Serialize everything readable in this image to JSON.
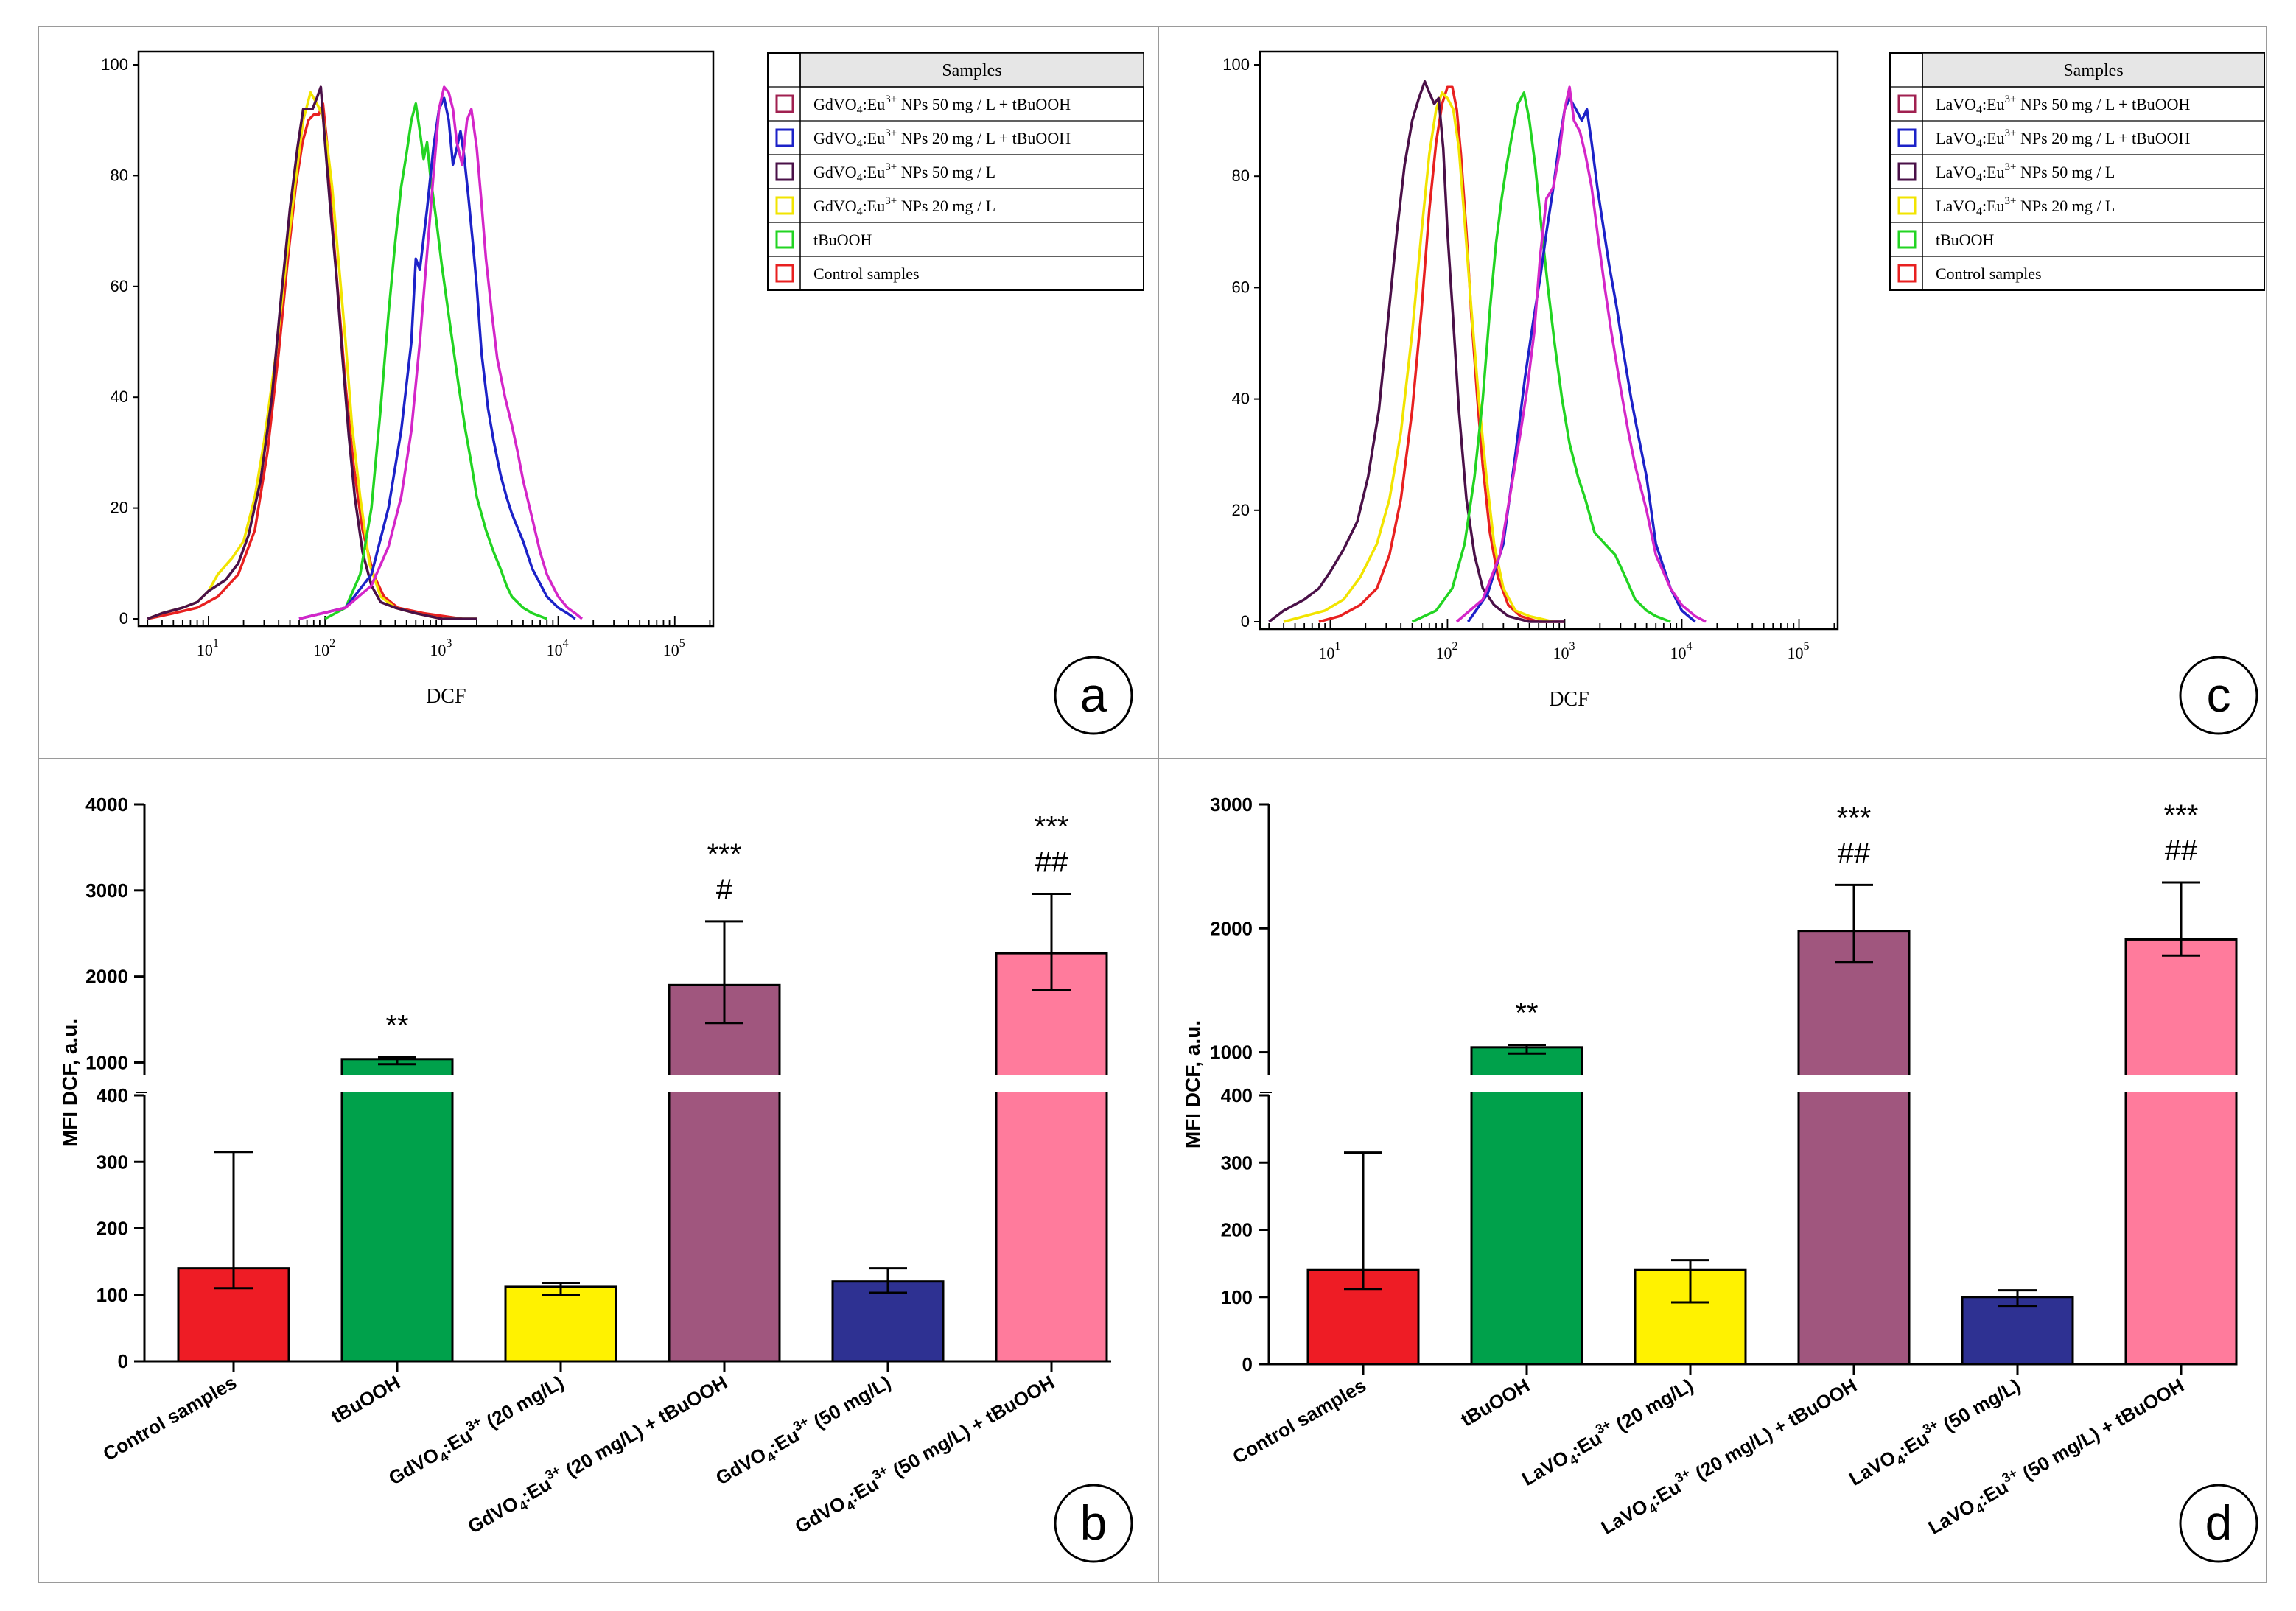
{
  "figure": {
    "panels": [
      "a",
      "b",
      "c",
      "d"
    ]
  },
  "chart_data": [
    {
      "panel_letter": "a",
      "type": "line",
      "xlabel": "DCF",
      "xscale": "log",
      "x_tick_labels": [
        "10^1",
        "10^2",
        "10^3",
        "10^4",
        "10^5"
      ],
      "ylim": [
        0,
        100
      ],
      "y_ticks": [
        0,
        20,
        40,
        60,
        80,
        100
      ],
      "legend_title": "Samples",
      "legend_position": "top-right",
      "series": [
        {
          "name": "GdVO4:Eu3+ NPs 50 mg / L + tBuOOH",
          "color": "#d426c8",
          "legend_color": "#a02050",
          "x": [
            60,
            150,
            250,
            350,
            450,
            550,
            650,
            750,
            850,
            950,
            1050,
            1150,
            1250,
            1350,
            1500,
            1650,
            1800,
            2000,
            2200,
            2400,
            2700,
            3000,
            3500,
            4000,
            4500,
            5000,
            6000,
            7000,
            8000,
            10000,
            12000,
            14000,
            16000
          ],
          "y": [
            0,
            2,
            6,
            13,
            22,
            34,
            50,
            66,
            80,
            92,
            96,
            95,
            92,
            86,
            82,
            90,
            92,
            85,
            75,
            65,
            55,
            47,
            40,
            35,
            30,
            25,
            18,
            12,
            8,
            4,
            2,
            1,
            0
          ]
        },
        {
          "name": "GdVO4:Eu3+ NPs 20 mg / L + tBuOOH",
          "color": "#1c22c8",
          "legend_color": "#1c22c8",
          "x": [
            60,
            150,
            250,
            350,
            450,
            550,
            600,
            650,
            750,
            850,
            950,
            1050,
            1150,
            1250,
            1350,
            1450,
            1550,
            1700,
            1850,
            2000,
            2200,
            2500,
            2800,
            3200,
            3600,
            4000,
            5000,
            6000,
            8000,
            10000,
            12000,
            14000
          ],
          "y": [
            0,
            2,
            8,
            20,
            34,
            50,
            65,
            63,
            74,
            85,
            92,
            94,
            90,
            82,
            85,
            88,
            84,
            76,
            68,
            60,
            48,
            38,
            32,
            26,
            22,
            19,
            14,
            9,
            4,
            2,
            1,
            0
          ]
        },
        {
          "name": "GdVO4:Eu3+ NPs 50 mg / L",
          "color": "#4a1048",
          "legend_color": "#4a1048",
          "x": [
            3,
            4,
            6,
            8,
            10,
            14,
            18,
            22,
            28,
            35,
            42,
            50,
            58,
            65,
            72,
            78,
            85,
            92,
            100,
            110,
            125,
            140,
            160,
            180,
            210,
            250,
            300,
            400,
            600,
            1000,
            2000
          ],
          "y": [
            0,
            1,
            2,
            3,
            5,
            7,
            10,
            15,
            25,
            40,
            58,
            74,
            85,
            92,
            92,
            92,
            94,
            96,
            86,
            75,
            62,
            48,
            33,
            22,
            12,
            6,
            3,
            2,
            1,
            0,
            0
          ]
        },
        {
          "name": "GdVO4:Eu3+ NPs 20 mg / L",
          "color": "#f2e400",
          "legend_color": "#f2e400",
          "x": [
            3,
            4,
            6,
            8,
            10,
            12,
            16,
            20,
            25,
            30,
            38,
            45,
            55,
            65,
            75,
            85,
            95,
            105,
            115,
            130,
            150,
            170,
            200,
            240,
            300,
            400,
            600,
            1000,
            2000
          ],
          "y": [
            0,
            1,
            2,
            3,
            5,
            8,
            11,
            14,
            22,
            32,
            48,
            62,
            78,
            90,
            95,
            93,
            91,
            85,
            78,
            65,
            50,
            35,
            22,
            10,
            4,
            2,
            1,
            0,
            0
          ]
        },
        {
          "name": "tBuOOH",
          "color": "#22d422",
          "legend_color": "#22d422",
          "x": [
            100,
            150,
            200,
            250,
            300,
            350,
            400,
            450,
            500,
            550,
            600,
            650,
            700,
            750,
            800,
            900,
            1000,
            1200,
            1400,
            1600,
            1800,
            2000,
            2400,
            2800,
            3200,
            3600,
            4000,
            5000,
            6000,
            8000
          ],
          "y": [
            0,
            2,
            8,
            20,
            38,
            55,
            68,
            78,
            84,
            90,
            93,
            88,
            83,
            86,
            80,
            72,
            64,
            52,
            42,
            34,
            28,
            22,
            16,
            12,
            9,
            6,
            4,
            2,
            1,
            0
          ]
        },
        {
          "name": "Control samples",
          "color": "#e82020",
          "legend_color": "#e82020",
          "x": [
            3,
            5,
            8,
            12,
            18,
            25,
            32,
            40,
            48,
            56,
            64,
            72,
            80,
            88,
            96,
            105,
            115,
            130,
            150,
            175,
            210,
            260,
            320,
            420,
            700,
            1500
          ],
          "y": [
            0,
            1,
            2,
            4,
            8,
            16,
            30,
            48,
            65,
            78,
            86,
            90,
            91,
            91,
            93,
            85,
            72,
            58,
            42,
            28,
            16,
            8,
            4,
            2,
            1,
            0
          ]
        }
      ]
    },
    {
      "panel_letter": "b",
      "type": "bar",
      "ylabel": "MFI DCF, a.u.",
      "categories": [
        "Control samples",
        "tBuOOH",
        "GdVO4:Eu3+ (20 mg/L)",
        "GdVO4:Eu3+ (20 mg/L) + tBuOOH",
        "GdVO4:Eu3+ (50 mg/L)",
        "GdVO4:Eu3+ (50 mg/L) + tBuOOH"
      ],
      "category_label_parts": [
        {
          "pre": "Control samples",
          "sub": "",
          "mid": "",
          "sup": "",
          "post": ""
        },
        {
          "pre": "tBuOOH",
          "sub": "",
          "mid": "",
          "sup": "",
          "post": ""
        },
        {
          "pre": "GdVO",
          "sub": "4",
          "mid": ":Eu",
          "sup": "3+",
          "post": " (20 mg/L)"
        },
        {
          "pre": "GdVO",
          "sub": "4",
          "mid": ":Eu",
          "sup": "3+",
          "post": " (20 mg/L) + tBuOOH"
        },
        {
          "pre": "GdVO",
          "sub": "4",
          "mid": ":Eu",
          "sup": "3+",
          "post": " (50 mg/L)"
        },
        {
          "pre": "GdVO",
          "sub": "4",
          "mid": ":Eu",
          "sup": "3+",
          "post": " (50 mg/L) + tBuOOH"
        }
      ],
      "values": [
        140,
        1040,
        112,
        1900,
        120,
        2270
      ],
      "error_high": [
        315,
        1060,
        118,
        2640,
        140,
        2960
      ],
      "error_low": [
        110,
        980,
        100,
        1460,
        103,
        1840
      ],
      "colors": [
        "#ee1c25",
        "#00a14b",
        "#fff200",
        "#a0567e",
        "#2e3192",
        "#ff7b9c"
      ],
      "significance": [
        [
          "",
          ""
        ],
        [
          "",
          "**"
        ],
        [
          "",
          ""
        ],
        [
          "***",
          "#"
        ],
        [
          "",
          ""
        ],
        [
          "***",
          "##"
        ]
      ],
      "y_axis_break": true,
      "y_lower_range": [
        0,
        400
      ],
      "y_lower_ticks": [
        0,
        100,
        200,
        300,
        400
      ],
      "y_upper_range": [
        730,
        4000
      ],
      "y_upper_ticks": [
        1000,
        2000,
        3000,
        4000
      ]
    },
    {
      "panel_letter": "c",
      "type": "line",
      "xlabel": "DCF",
      "xscale": "log",
      "x_tick_labels": [
        "10^1",
        "10^2",
        "10^3",
        "10^4",
        "10^5"
      ],
      "ylim": [
        0,
        100
      ],
      "y_ticks": [
        0,
        20,
        40,
        60,
        80,
        100
      ],
      "legend_title": "Samples",
      "legend_position": "top-right",
      "series": [
        {
          "name": "LaVO4:Eu3+ NPs 50 mg / L + tBuOOH",
          "color": "#d426c8",
          "legend_color": "#a02050",
          "x": [
            120,
            200,
            280,
            350,
            420,
            480,
            550,
            620,
            700,
            800,
            900,
            1000,
            1100,
            1200,
            1350,
            1500,
            1700,
            1900,
            2200,
            2500,
            3000,
            3500,
            4000,
            5000,
            6000,
            8000,
            10000,
            13000,
            16000
          ],
          "y": [
            0,
            4,
            12,
            24,
            34,
            42,
            52,
            66,
            76,
            78,
            84,
            92,
            96,
            90,
            88,
            84,
            78,
            70,
            60,
            52,
            42,
            34,
            28,
            20,
            12,
            6,
            3,
            1,
            0
          ]
        },
        {
          "name": "LaVO4:Eu3+ NPs 20 mg / L + tBuOOH",
          "color": "#1c22c8",
          "legend_color": "#1c22c8",
          "x": [
            150,
            220,
            300,
            380,
            460,
            540,
            620,
            700,
            800,
            900,
            1000,
            1100,
            1250,
            1400,
            1550,
            1700,
            1900,
            2100,
            2400,
            2800,
            3200,
            3700,
            4200,
            5000,
            6000,
            8000,
            10000,
            13000
          ],
          "y": [
            0,
            5,
            14,
            30,
            44,
            54,
            62,
            70,
            78,
            86,
            92,
            94,
            92,
            90,
            92,
            86,
            78,
            72,
            64,
            56,
            48,
            40,
            34,
            26,
            14,
            6,
            2,
            0
          ]
        },
        {
          "name": "LaVO4:Eu3+ NPs 50 mg / L",
          "color": "#4a1048",
          "legend_color": "#4a1048",
          "x": [
            3,
            4,
            6,
            8,
            10,
            13,
            17,
            21,
            26,
            31,
            37,
            43,
            50,
            57,
            64,
            70,
            77,
            84,
            92,
            100,
            112,
            125,
            145,
            170,
            200,
            250,
            330,
            500,
            1000
          ],
          "y": [
            0,
            2,
            4,
            6,
            9,
            13,
            18,
            26,
            38,
            54,
            70,
            82,
            90,
            94,
            97,
            95,
            93,
            94,
            85,
            70,
            54,
            38,
            22,
            12,
            6,
            3,
            1,
            0,
            0
          ]
        },
        {
          "name": "LaVO4:Eu3+ NPs 20 mg / L",
          "color": "#f2e400",
          "legend_color": "#f2e400",
          "x": [
            4,
            6,
            9,
            13,
            18,
            25,
            32,
            40,
            50,
            60,
            70,
            80,
            90,
            100,
            112,
            125,
            140,
            160,
            185,
            215,
            250,
            300,
            380,
            500,
            800
          ],
          "y": [
            0,
            1,
            2,
            4,
            8,
            14,
            22,
            34,
            52,
            70,
            84,
            92,
            95,
            94,
            92,
            85,
            72,
            56,
            40,
            26,
            14,
            6,
            2,
            1,
            0
          ]
        },
        {
          "name": "tBuOOH",
          "color": "#22d422",
          "legend_color": "#22d422",
          "x": [
            50,
            80,
            110,
            140,
            170,
            200,
            230,
            260,
            290,
            320,
            360,
            400,
            450,
            500,
            560,
            640,
            720,
            820,
            950,
            1100,
            1300,
            1500,
            1800,
            2200,
            2700,
            3300,
            4000,
            5000,
            6000,
            8000
          ],
          "y": [
            0,
            2,
            6,
            14,
            26,
            40,
            56,
            68,
            76,
            82,
            88,
            93,
            95,
            90,
            82,
            70,
            60,
            50,
            40,
            32,
            26,
            22,
            16,
            14,
            12,
            8,
            4,
            2,
            1,
            0
          ]
        },
        {
          "name": "Control samples",
          "color": "#e82020",
          "legend_color": "#e82020",
          "x": [
            8,
            12,
            18,
            25,
            32,
            40,
            50,
            60,
            70,
            80,
            90,
            100,
            110,
            120,
            130,
            145,
            160,
            180,
            200,
            230,
            270,
            330,
            420,
            600,
            1000
          ],
          "y": [
            0,
            1,
            3,
            6,
            12,
            22,
            38,
            56,
            74,
            86,
            93,
            96,
            96,
            92,
            84,
            70,
            55,
            40,
            28,
            16,
            8,
            3,
            1,
            0,
            0
          ]
        }
      ]
    },
    {
      "panel_letter": "d",
      "type": "bar",
      "ylabel": "MFI DCF, a.u.",
      "categories": [
        "Control samples",
        "tBuOOH",
        "LaVO4:Eu3+ (20 mg/L)",
        "LaVO4:Eu3+ (20 mg/L) + tBuOOH",
        "LaVO4:Eu3+ (50 mg/L)",
        "LaVO4:Eu3+ (50 mg/L) + tBuOOH"
      ],
      "category_label_parts": [
        {
          "pre": "Control samples",
          "sub": "",
          "mid": "",
          "sup": "",
          "post": ""
        },
        {
          "pre": "tBuOOH",
          "sub": "",
          "mid": "",
          "sup": "",
          "post": ""
        },
        {
          "pre": "LaVO",
          "sub": "4",
          "mid": ":Eu",
          "sup": "3+",
          "post": " (20 mg/L)"
        },
        {
          "pre": "LaVO",
          "sub": "4",
          "mid": ":Eu",
          "sup": "3+",
          "post": " (20 mg/L) + tBuOOH"
        },
        {
          "pre": "LaVO",
          "sub": "4",
          "mid": ":Eu",
          "sup": "3+",
          "post": " (50 mg/L)"
        },
        {
          "pre": "LaVO",
          "sub": "4",
          "mid": ":Eu",
          "sup": "3+",
          "post": " (50 mg/L) + tBuOOH"
        }
      ],
      "values": [
        140,
        1040,
        140,
        1980,
        100,
        1910
      ],
      "error_high": [
        315,
        1060,
        155,
        2350,
        110,
        2370
      ],
      "error_low": [
        112,
        990,
        92,
        1730,
        87,
        1780
      ],
      "colors": [
        "#ee1c25",
        "#00a14b",
        "#fff200",
        "#a0567e",
        "#2e3192",
        "#ff7b9c"
      ],
      "significance": [
        [
          "",
          ""
        ],
        [
          "",
          "**"
        ],
        [
          "",
          ""
        ],
        [
          "***",
          "##"
        ],
        [
          "",
          ""
        ],
        [
          "***",
          "##"
        ]
      ],
      "y_axis_break": true,
      "y_lower_range": [
        0,
        400
      ],
      "y_lower_ticks": [
        0,
        100,
        200,
        300,
        400
      ],
      "y_upper_range": [
        730,
        3000
      ],
      "y_upper_ticks": [
        1000,
        2000,
        3000
      ]
    }
  ]
}
